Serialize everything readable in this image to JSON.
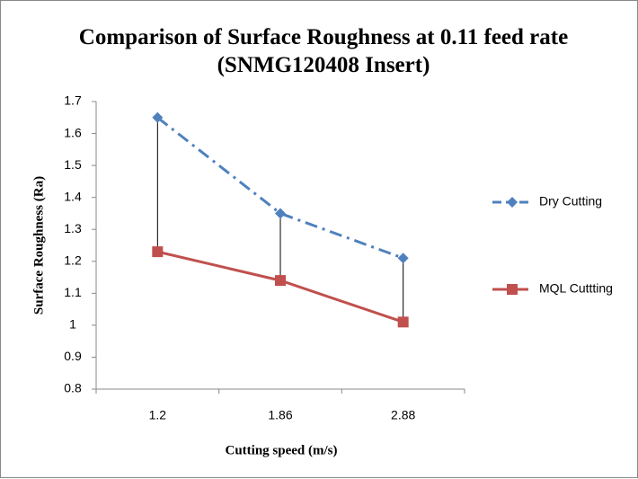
{
  "chart_data": {
    "type": "line",
    "title": "Comparison of  Surface Roughness at 0.11 feed rate (SNMG120408 Insert)",
    "x_label": "Cutting speed (m/s)",
    "y_label": "Surface Roughness (Ra)",
    "categories": [
      "1.2",
      "1.86",
      "2.88"
    ],
    "series": [
      {
        "name": "Dry Cutting",
        "color": "#4f81bd",
        "marker": "diamond",
        "dash": "dash-dot",
        "values": [
          1.65,
          1.35,
          1.21
        ]
      },
      {
        "name": "MQL Cuttting",
        "color": "#c0504d",
        "marker": "square",
        "dash": "solid",
        "values": [
          1.23,
          1.14,
          1.01
        ]
      }
    ],
    "ylim": [
      0.8,
      1.7
    ],
    "yticks": [
      0.8,
      0.9,
      1,
      1.1,
      1.2,
      1.3,
      1.4,
      1.5,
      1.6,
      1.7
    ],
    "grid": false,
    "high_low_lines": true,
    "legend": "right"
  }
}
